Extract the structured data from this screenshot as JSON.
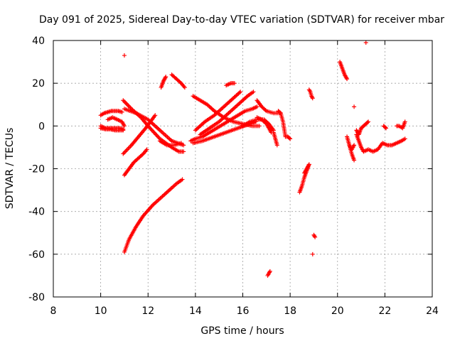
{
  "chart_data": {
    "type": "scatter",
    "title": "Day 091 of 2025, Sidereal Day-to-day VTEC variation (SDTVAR) for receiver mbar",
    "xlabel": "GPS time / hours",
    "ylabel": "SDTVAR / TECUs",
    "xlim": [
      8,
      24
    ],
    "ylim": [
      -80,
      40
    ],
    "xticks": [
      "8",
      "10",
      "12",
      "14",
      "16",
      "18",
      "20",
      "22",
      "24"
    ],
    "yticks": [
      "40",
      "20",
      "0",
      "-20",
      "-40",
      "-60",
      "-80"
    ],
    "grid": true,
    "marker": "plus",
    "color": "#ff0000",
    "series": [
      {
        "x": [
          10.0,
          10.15,
          10.3,
          10.45,
          10.6,
          10.75,
          10.9
        ],
        "y": [
          5,
          6,
          6.5,
          7,
          7,
          7,
          6.5
        ]
      },
      {
        "x": [
          10.0,
          10.2,
          10.4,
          10.6,
          10.8,
          10.95
        ],
        "y": [
          0,
          -1,
          -1,
          -1,
          -1,
          -1.5
        ]
      },
      {
        "x": [
          10.0,
          10.2,
          10.4,
          10.6,
          10.8,
          10.95
        ],
        "y": [
          -1,
          -1.5,
          -1.5,
          -2,
          -2,
          -2
        ]
      },
      {
        "x": [
          10.3,
          10.5,
          10.7,
          10.9,
          11.0
        ],
        "y": [
          3,
          4,
          3,
          2,
          0
        ]
      },
      {
        "x": [
          10.95,
          11.3,
          11.7,
          12.0,
          12.5,
          13.0,
          13.3,
          13.5
        ],
        "y": [
          12,
          8,
          4,
          0,
          -6,
          -10,
          -12,
          -12
        ]
      },
      {
        "x": [
          11.0,
          11.5,
          12.0,
          12.5,
          13.0,
          13.5
        ],
        "y": [
          8,
          6,
          3,
          -2,
          -7,
          -9
        ]
      },
      {
        "x": [
          10.95,
          11.3,
          11.6,
          11.9,
          12.1,
          12.3
        ],
        "y": [
          -13,
          -9,
          -5,
          -1,
          2,
          5
        ]
      },
      {
        "x": [
          11.0,
          11.2,
          11.4,
          11.6,
          11.8,
          11.95
        ],
        "y": [
          -23,
          -20,
          -17,
          -15,
          -13,
          -11
        ]
      },
      {
        "x": [
          11.0,
          11.2,
          11.5,
          11.8,
          12.2,
          12.7,
          13.2,
          13.45
        ],
        "y": [
          -59,
          -53,
          -47,
          -42,
          -37,
          -32,
          -27,
          -25
        ]
      },
      {
        "x": [
          11.0
        ],
        "y": [
          33
        ]
      },
      {
        "x": [
          12.55,
          12.65,
          12.75
        ],
        "y": [
          18,
          21,
          23
        ]
      },
      {
        "x": [
          13.0,
          13.2,
          13.4,
          13.55
        ],
        "y": [
          24,
          22,
          20,
          18
        ]
      },
      {
        "x": [
          12.5,
          12.8,
          13.1,
          13.4
        ],
        "y": [
          -7,
          -9,
          -9,
          -8
        ]
      },
      {
        "x": [
          13.8,
          14.0,
          14.3,
          14.6,
          14.9,
          15.2,
          15.5,
          15.8,
          16.1,
          16.4,
          16.6
        ],
        "y": [
          -7,
          -6,
          -5,
          -3,
          -1,
          1,
          3,
          5,
          7,
          8,
          9
        ]
      },
      {
        "x": [
          13.9,
          14.3,
          14.8,
          15.3,
          15.8,
          16.3,
          16.55
        ],
        "y": [
          -8,
          -7,
          -5,
          -3,
          -1,
          1,
          2
        ]
      },
      {
        "x": [
          14.0,
          14.4,
          14.8,
          15.2,
          15.6,
          15.9
        ],
        "y": [
          -2,
          2,
          5,
          9,
          13,
          16
        ]
      },
      {
        "x": [
          14.2,
          14.6,
          15.0,
          15.4,
          15.8,
          16.2,
          16.45
        ],
        "y": [
          -4,
          -1,
          2,
          6,
          10,
          14,
          16
        ]
      },
      {
        "x": [
          13.9,
          14.2,
          14.5,
          14.8,
          15.2,
          15.6,
          16.0,
          16.4,
          16.7
        ],
        "y": [
          14,
          12,
          10,
          7,
          4,
          2,
          1,
          0,
          0
        ]
      },
      {
        "x": [
          15.3,
          15.5,
          15.65
        ],
        "y": [
          19,
          20,
          20
        ]
      },
      {
        "x": [
          16.0,
          16.3,
          16.6,
          16.9,
          17.1,
          17.3
        ],
        "y": [
          0,
          2,
          3,
          3,
          1,
          -2
        ]
      },
      {
        "x": [
          16.6,
          16.8,
          17.0,
          17.2
        ],
        "y": [
          4,
          3,
          1,
          -3
        ]
      },
      {
        "x": [
          16.6,
          16.8,
          17.0,
          17.3,
          17.6
        ],
        "y": [
          12,
          9,
          7,
          6,
          6
        ]
      },
      {
        "x": [
          17.3,
          17.35,
          17.4,
          17.45
        ],
        "y": [
          -3,
          -5,
          -7,
          -9
        ]
      },
      {
        "x": [
          17.5,
          17.6,
          17.7,
          17.8,
          17.9,
          18.0
        ],
        "y": [
          7,
          6,
          2,
          -5,
          -5,
          -6
        ]
      },
      {
        "x": [
          17.05,
          17.1,
          17.15
        ],
        "y": [
          -70,
          -69,
          -68
        ]
      },
      {
        "x": [
          18.4,
          18.5,
          18.6,
          18.7,
          18.8
        ],
        "y": [
          -31,
          -28,
          -24,
          -21,
          -18
        ]
      },
      {
        "x": [
          18.6,
          18.7,
          18.8
        ],
        "y": [
          -22,
          -20,
          -18
        ]
      },
      {
        "x": [
          18.8,
          18.85,
          18.9,
          18.95
        ],
        "y": [
          17,
          16,
          14,
          13
        ]
      },
      {
        "x": [
          19.0,
          19.05
        ],
        "y": [
          -51,
          -52
        ]
      },
      {
        "x": [
          18.95
        ],
        "y": [
          -60
        ]
      },
      {
        "x": [
          20.1,
          20.2,
          20.3,
          20.4
        ],
        "y": [
          30,
          27,
          24,
          22
        ]
      },
      {
        "x": [
          20.4,
          20.5,
          20.6,
          20.7
        ],
        "y": [
          -5,
          -9,
          -13,
          -16
        ]
      },
      {
        "x": [
          20.5,
          20.6,
          20.7
        ],
        "y": [
          -9,
          -11,
          -9
        ]
      },
      {
        "x": [
          20.7
        ],
        "y": [
          9
        ]
      },
      {
        "x": [
          20.8,
          20.9,
          21.0,
          21.1,
          21.3,
          21.5,
          21.7,
          21.9,
          22.1,
          22.3,
          22.5,
          22.7,
          22.85
        ],
        "y": [
          -4,
          -7,
          -10,
          -12,
          -11,
          -12,
          -11,
          -8,
          -9,
          -9,
          -8,
          -7,
          -6
        ]
      },
      {
        "x": [
          20.8,
          20.9,
          21.0,
          21.1,
          21.2,
          21.3
        ],
        "y": [
          -2,
          -4,
          -1,
          0,
          1,
          2
        ]
      },
      {
        "x": [
          21.2
        ],
        "y": [
          39
        ]
      },
      {
        "x": [
          21.95,
          22.05
        ],
        "y": [
          0,
          -1
        ]
      },
      {
        "x": [
          22.5,
          22.6,
          22.75,
          22.85
        ],
        "y": [
          0,
          0,
          -1,
          2
        ]
      }
    ]
  }
}
